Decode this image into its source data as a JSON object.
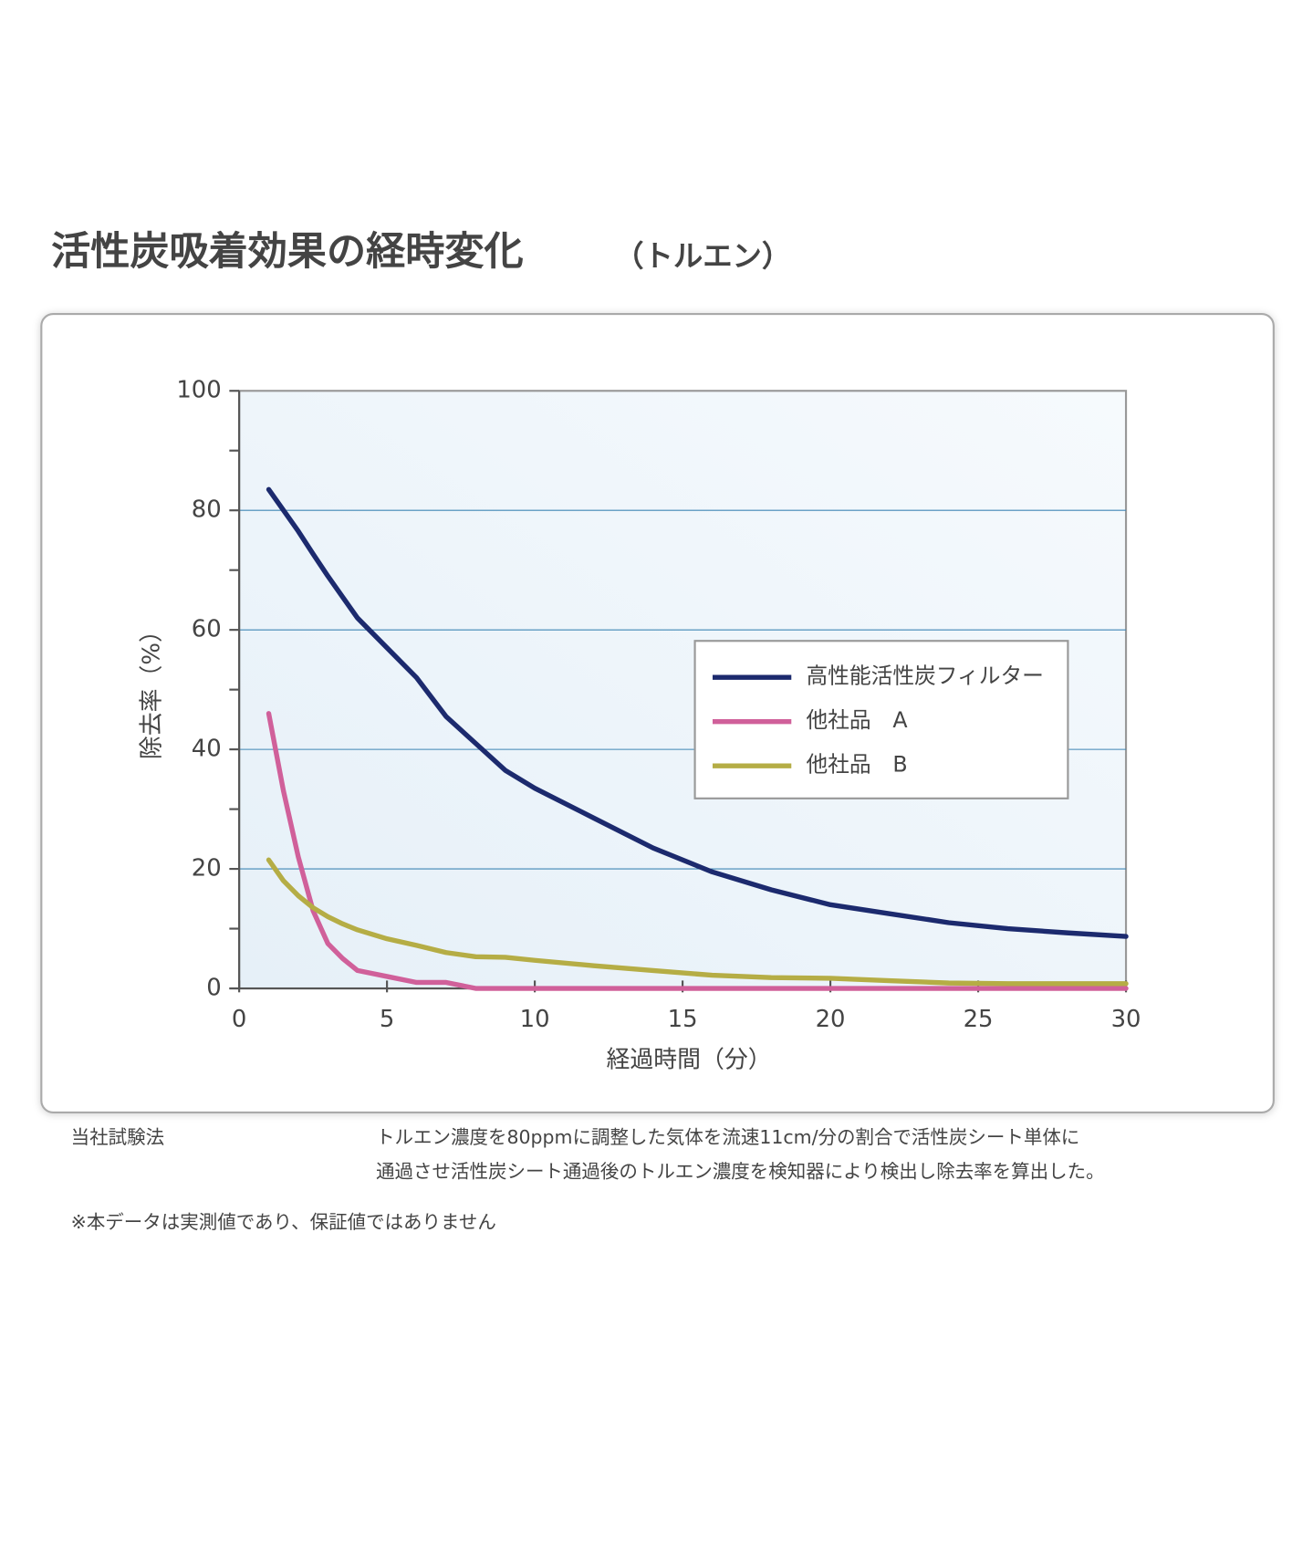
{
  "chart_data": {
    "type": "line",
    "title": "活性炭吸着効果の経時変化",
    "subtitle": "（トルエン）",
    "x_label": "経過時間（分）",
    "y_label": "除去率（%）",
    "x": [
      1,
      1.5,
      2,
      2.5,
      3,
      3.5,
      4,
      5,
      6,
      7,
      8,
      9,
      10,
      12,
      14,
      16,
      18,
      20,
      22,
      24,
      26,
      28,
      30
    ],
    "series": [
      {
        "name": "高性能活性炭フィルター",
        "color": "#1c2a6e",
        "values": [
          83.5,
          80,
          76.5,
          72.7,
          69,
          65.5,
          62,
          57,
          52,
          45.5,
          41,
          36.5,
          33.5,
          28.5,
          23.5,
          19.5,
          16.5,
          14,
          12.5,
          11,
          10,
          9.3,
          8.7
        ]
      },
      {
        "name": "他社品　A",
        "color": "#d0609a",
        "values": [
          46,
          33,
          22,
          13,
          7.5,
          5,
          3,
          2,
          1,
          1,
          0,
          0,
          0,
          0,
          0,
          0,
          0,
          0,
          0,
          0,
          0,
          0,
          0
        ]
      },
      {
        "name": "他社品　B",
        "color": "#b5ad45",
        "values": [
          21.5,
          18,
          15.5,
          13.5,
          12,
          10.8,
          9.8,
          8.3,
          7.2,
          6,
          5.3,
          5.2,
          4.7,
          3.8,
          3,
          2.2,
          1.8,
          1.7,
          1.3,
          0.9,
          0.8,
          0.8,
          0.8
        ]
      }
    ],
    "xlim": [
      0,
      30
    ],
    "xticks": [
      0,
      5,
      10,
      15,
      20,
      25,
      30
    ],
    "ylim": [
      0,
      100
    ],
    "yticks": [
      0,
      20,
      40,
      60,
      80,
      100
    ],
    "yticks_minor": [
      10,
      30,
      50,
      70,
      90
    ],
    "grid": true,
    "legend": "right"
  },
  "notes": {
    "method_label": "当社試験法",
    "method_lines": [
      "トルエン濃度を80ppmに調整した気体を流速11cm/分の割合で活性炭シート単体に",
      "通過させ活性炭シート通過後のトルエン濃度を検知器により検出し除去率を算出した。"
    ],
    "disclaimer": "※本データは実測値であり、保証値ではありません"
  }
}
